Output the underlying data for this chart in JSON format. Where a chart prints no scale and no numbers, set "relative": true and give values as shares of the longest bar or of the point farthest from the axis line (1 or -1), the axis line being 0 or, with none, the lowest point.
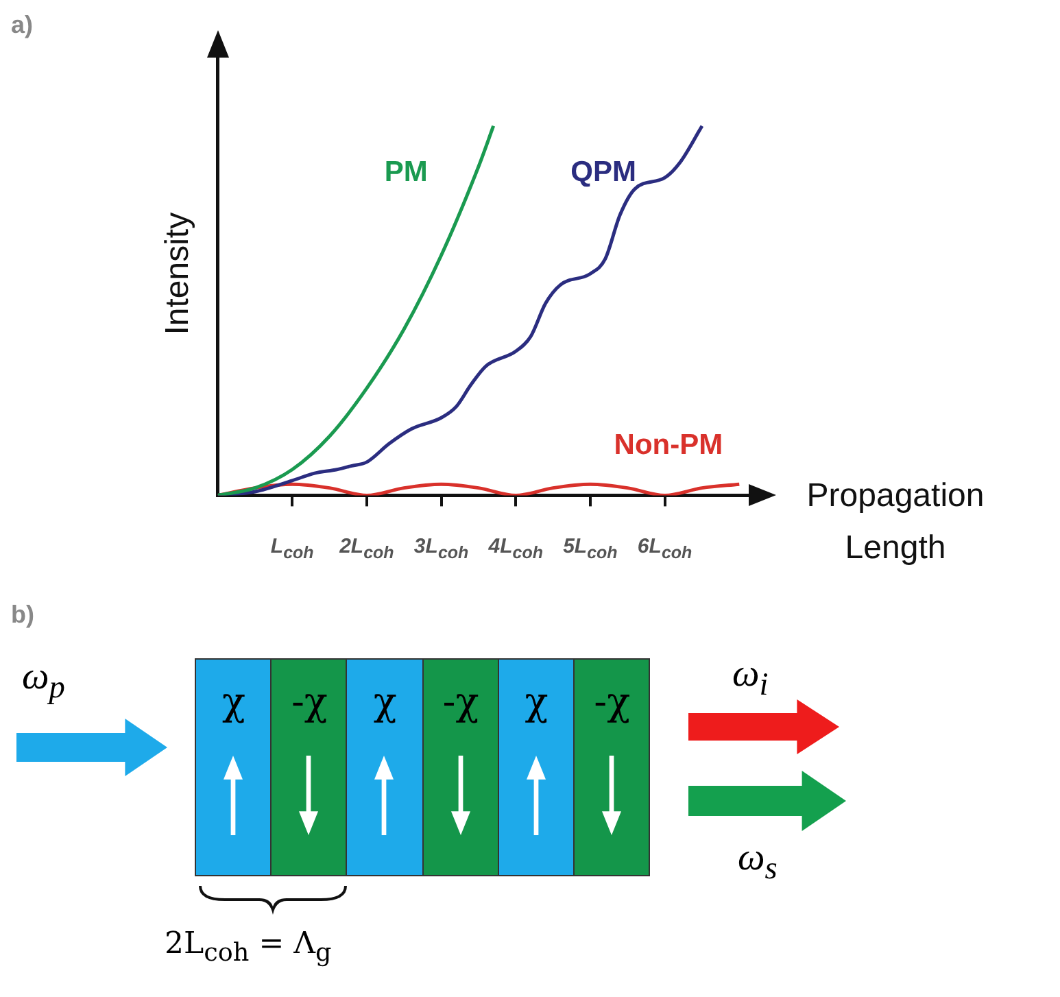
{
  "chart_data": {
    "type": "line",
    "relative": true,
    "xlabel": "Propagation Length",
    "ylabel": "Intensity",
    "xlim": [
      0,
      7.2
    ],
    "marker": "none",
    "xticks": [
      {
        "value": 1,
        "label": "L$_{coh}$"
      },
      {
        "value": 2,
        "label": "2L$_{coh}$"
      },
      {
        "value": 3,
        "label": "3L$_{coh}$"
      },
      {
        "value": 4,
        "label": "4L$_{coh}$"
      },
      {
        "value": 5,
        "label": "5L$_{coh}$"
      },
      {
        "value": 6,
        "label": "6L$_{coh}$"
      }
    ],
    "annotations": [
      "a)",
      "b)",
      "ω$_{p}$",
      "χ",
      "-χ",
      "χ",
      "-χ",
      "χ",
      "-χ",
      "ω$_{i}$",
      "ω$_{s}$",
      "2L$_{coh}$ = Λ$_{g}$"
    ],
    "series": [
      {
        "name": "PM",
        "color": "#1a9a50",
        "x": [
          0,
          0.5,
          1,
          1.5,
          2,
          2.5,
          3,
          3.5,
          3.7
        ],
        "values": [
          0,
          0.02,
          0.07,
          0.16,
          0.29,
          0.45,
          0.65,
          0.89,
          1.0
        ]
      },
      {
        "name": "QPM",
        "color": "#2b2d80",
        "x": [
          0,
          0.5,
          1,
          1.3,
          1.6,
          1.8,
          2,
          2.3,
          2.6,
          3,
          3.2,
          3.4,
          3.6,
          4,
          4.2,
          4.4,
          4.6,
          5,
          5.2,
          5.4,
          5.6,
          6,
          6.2,
          6.5
        ],
        "values": [
          0,
          0.01,
          0.04,
          0.06,
          0.07,
          0.08,
          0.09,
          0.14,
          0.18,
          0.21,
          0.24,
          0.3,
          0.35,
          0.39,
          0.43,
          0.52,
          0.57,
          0.6,
          0.64,
          0.76,
          0.83,
          0.86,
          0.9,
          1.0
        ]
      },
      {
        "name": "Non-PM",
        "color": "#d9312b",
        "x": [
          0,
          0.5,
          1,
          1.5,
          2,
          2.5,
          3,
          3.5,
          4,
          4.5,
          5,
          5.5,
          6,
          6.5,
          7
        ],
        "values": [
          0,
          0.02,
          0.03,
          0.02,
          0,
          0.02,
          0.03,
          0.02,
          0,
          0.02,
          0.03,
          0.02,
          0,
          0.02,
          0.03
        ]
      }
    ]
  }
}
